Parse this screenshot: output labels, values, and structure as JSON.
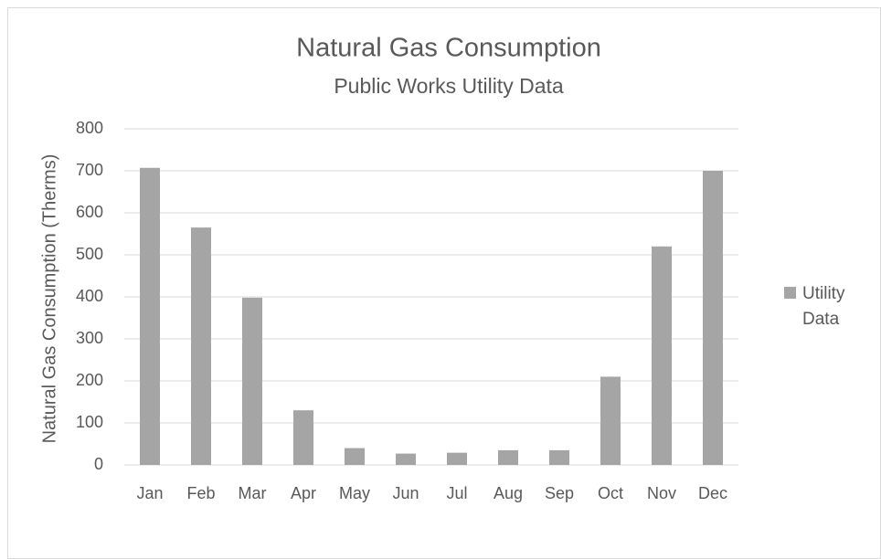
{
  "chart_data": {
    "type": "bar",
    "title": "Natural Gas Consumption",
    "subtitle": "Public Works Utility Data",
    "y_label": "Natural Gas Consumption (Therms)",
    "categories": [
      "Jan",
      "Feb",
      "Mar",
      "Apr",
      "May",
      "Jun",
      "Jul",
      "Aug",
      "Sep",
      "Oct",
      "Nov",
      "Dec"
    ],
    "series": [
      {
        "name": "Utility Data",
        "color": "#a5a5a5",
        "values": [
          707,
          565,
          398,
          130,
          40,
          27,
          29,
          35,
          35,
          210,
          520,
          700
        ]
      }
    ],
    "ylim": [
      0,
      800
    ],
    "yticks": [
      0,
      100,
      200,
      300,
      400,
      500,
      600,
      700,
      800
    ],
    "grid": true,
    "legend": "right"
  }
}
